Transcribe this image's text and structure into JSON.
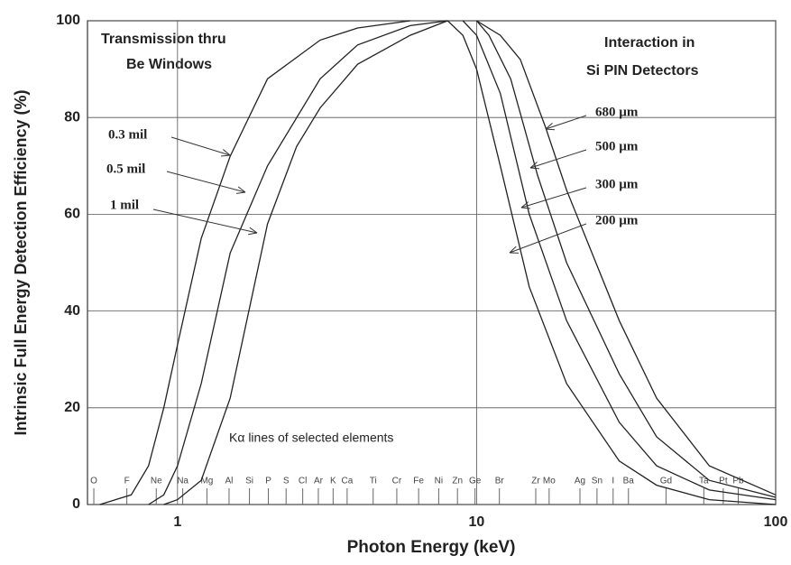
{
  "chart_data": {
    "type": "line",
    "x_label": "Photon Energy (keV)",
    "y_label": "Intrinsic Full Energy Detection Efficiency (%)",
    "xlim": [
      0.5,
      100
    ],
    "ylim": [
      0,
      100
    ],
    "xticks": [
      1,
      10,
      100
    ],
    "yticks": [
      0,
      20,
      40,
      60,
      80,
      100
    ],
    "log_x": true,
    "grid": true,
    "annotations": [
      "Transmission thru",
      "Be Windows",
      "Interaction in",
      "Si PIN Detectors",
      "Kα lines of selected elements"
    ],
    "series": [
      {
        "name": "0.3 mil",
        "color": "#222222",
        "x": [
          0.55,
          0.7,
          0.8,
          0.9,
          1.0,
          1.2,
          1.5,
          2,
          3,
          4,
          6
        ],
        "values": [
          0,
          2,
          8,
          20,
          33,
          55,
          72,
          88,
          96,
          98.5,
          100
        ]
      },
      {
        "name": "0.5 mil",
        "color": "#222222",
        "x": [
          0.8,
          0.9,
          1.0,
          1.2,
          1.5,
          2,
          3,
          4,
          6,
          8
        ],
        "values": [
          0,
          2,
          8,
          25,
          52,
          70,
          88,
          95,
          99,
          100
        ]
      },
      {
        "name": "1 mil",
        "color": "#222222",
        "x": [
          0.9,
          1.0,
          1.2,
          1.5,
          2,
          2.5,
          3,
          4,
          6,
          8
        ],
        "values": [
          0,
          1,
          5,
          22,
          58,
          74,
          82,
          91,
          97,
          100
        ]
      },
      {
        "name": "680 µm",
        "color": "#222222",
        "x": [
          10,
          12,
          14,
          17,
          20,
          30,
          40,
          60,
          100
        ],
        "values": [
          100,
          97,
          92,
          78,
          65,
          38,
          22,
          8,
          2
        ]
      },
      {
        "name": "500 µm",
        "color": "#222222",
        "x": [
          10,
          11,
          13,
          16,
          20,
          30,
          40,
          60,
          100
        ],
        "values": [
          100,
          97,
          88,
          68,
          50,
          27,
          14,
          5,
          1.5
        ]
      },
      {
        "name": "300 µm",
        "color": "#222222",
        "x": [
          9,
          10,
          12,
          15,
          20,
          30,
          40,
          60,
          100
        ],
        "values": [
          100,
          97,
          85,
          60,
          38,
          17,
          8,
          3,
          1
        ]
      },
      {
        "name": "200 µm",
        "color": "#222222",
        "x": [
          8,
          9,
          10,
          12,
          15,
          20,
          30,
          40,
          60,
          100
        ],
        "values": [
          100,
          97,
          90,
          70,
          45,
          25,
          9,
          4,
          1,
          0
        ]
      }
    ],
    "element_lines": {
      "labels": [
        "O",
        "F",
        "Ne",
        "Na",
        "Mg",
        "Al",
        "Si",
        "P",
        "S",
        "Cl",
        "Ar",
        "K",
        "Ca",
        "Ti",
        "Cr",
        "Fe",
        "Ni",
        "Zn",
        "Ge",
        "Br",
        "Zr",
        "Mo",
        "Ag",
        "Sn",
        "I",
        "Ba",
        "Gd",
        "Ta",
        "Pt",
        "Pb"
      ],
      "x": [
        0.525,
        0.677,
        0.849,
        1.041,
        1.254,
        1.487,
        1.74,
        2.013,
        2.307,
        2.622,
        2.957,
        3.313,
        3.691,
        4.51,
        5.41,
        6.4,
        7.47,
        8.63,
        9.88,
        11.92,
        15.77,
        17.48,
        22.16,
        25.27,
        28.61,
        32.19,
        42.99,
        57.5,
        66.8,
        74.97
      ]
    }
  }
}
